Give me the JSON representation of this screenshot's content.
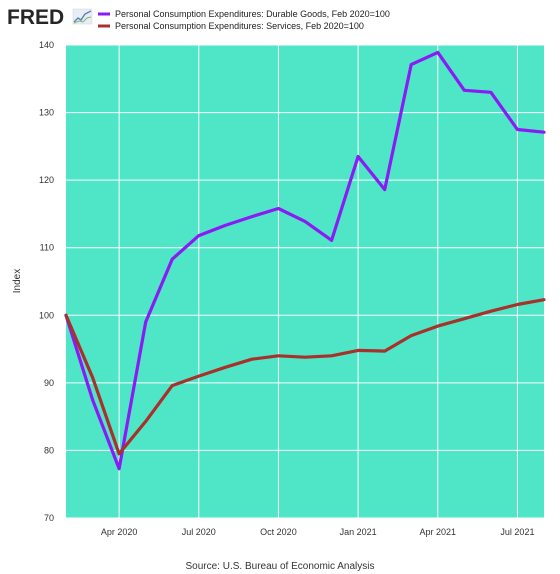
{
  "logo": {
    "text": "FRED",
    "icon": "fred-line-chart-icon"
  },
  "source": "Source: U.S. Bureau of Economic Analysis",
  "colors": {
    "plot_background": "#4ee6c6",
    "grid": "#ffffff",
    "durable": "#8b1af4",
    "services": "#a8312b"
  },
  "chart_data": {
    "type": "line",
    "ylabel": "Index",
    "ylim": [
      70,
      140
    ],
    "yticks": [
      70,
      80,
      90,
      100,
      110,
      120,
      130,
      140
    ],
    "x": [
      "2020-02",
      "2020-03",
      "2020-04",
      "2020-05",
      "2020-06",
      "2020-07",
      "2020-08",
      "2020-09",
      "2020-10",
      "2020-11",
      "2020-12",
      "2021-01",
      "2021-02",
      "2021-03",
      "2021-04",
      "2021-05",
      "2021-06",
      "2021-07",
      "2021-08"
    ],
    "xticks": [
      "Apr 2020",
      "Jul 2020",
      "Oct 2020",
      "Jan 2021",
      "Apr 2021",
      "Jul 2021"
    ],
    "xtick_months": [
      "2020-04",
      "2020-07",
      "2020-10",
      "2021-01",
      "2021-04",
      "2021-07"
    ],
    "grid": true,
    "legend_placement": "top-left",
    "series": [
      {
        "name": "Personal Consumption Expenditures: Durable Goods, Feb 2020=100",
        "color": "#8b1af4",
        "values": [
          100,
          87.5,
          77.3,
          99,
          108.3,
          111.8,
          113.3,
          114.6,
          115.8,
          113.9,
          111.1,
          123.5,
          118.6,
          137.1,
          138.9,
          133.3,
          133.0,
          127.5,
          127.1
        ]
      },
      {
        "name": "Personal Consumption Expenditures: Services, Feb 2020=100",
        "color": "#a8312b",
        "values": [
          100,
          90.8,
          79.5,
          84.3,
          89.6,
          91.0,
          92.3,
          93.5,
          94.0,
          93.8,
          94.0,
          94.8,
          94.7,
          97.0,
          98.4,
          99.5,
          100.6,
          101.6,
          102.3
        ]
      }
    ]
  }
}
